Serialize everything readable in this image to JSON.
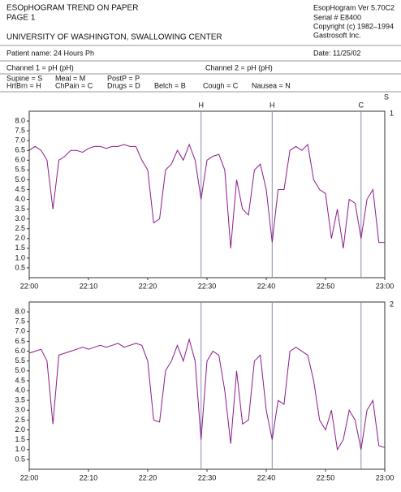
{
  "header": {
    "title": "ESOpHOGRAM TREND ON PAPER",
    "page": "PAGE 1",
    "institution": "UNIVERSITY OF WASHINGTON, SWALLOWING CENTER",
    "version": "EsopHogram Ver 5.70C2",
    "serial": "Serial # E8400",
    "copyright": "Copyright (c) 1982–1994",
    "company": "Gastrosoft Inc."
  },
  "patient": {
    "name": "Patient name: 24 Hours Ph",
    "date": "Date: 11/25/02"
  },
  "channels": [
    "Channel 1 = pH (pH)",
    "Channel 2 = pH (pH)"
  ],
  "legend": [
    "Supine = S",
    "Meal = M",
    "PostP = P",
    "HrtBrn = H",
    "ChPain = C",
    "Drugs = D",
    "Belch = B",
    "Cough = C",
    "Nausea = N"
  ],
  "position_marker": "S",
  "chart_data": [
    {
      "type": "line",
      "label": "1",
      "color": "#8b1a8b",
      "x": [
        "22:00",
        "22:01",
        "22:02",
        "22:03",
        "22:04",
        "22:05",
        "22:06",
        "22:07",
        "22:08",
        "22:09",
        "22:10",
        "22:11",
        "22:12",
        "22:13",
        "22:14",
        "22:15",
        "22:16",
        "22:17",
        "22:18",
        "22:19",
        "22:20",
        "22:21",
        "22:22",
        "22:23",
        "22:24",
        "22:25",
        "22:26",
        "22:27",
        "22:28",
        "22:29",
        "22:30",
        "22:31",
        "22:32",
        "22:33",
        "22:34",
        "22:35",
        "22:36",
        "22:37",
        "22:38",
        "22:39",
        "22:40",
        "22:41",
        "22:42",
        "22:43",
        "22:44",
        "22:45",
        "22:46",
        "22:47",
        "22:48",
        "22:49",
        "22:50",
        "22:51",
        "22:52",
        "22:53",
        "22:54",
        "22:55",
        "22:56",
        "22:57",
        "22:58",
        "22:59",
        "23:00"
      ],
      "values": [
        6.5,
        6.7,
        6.5,
        6.0,
        3.5,
        6.0,
        6.2,
        6.5,
        6.5,
        6.4,
        6.6,
        6.7,
        6.7,
        6.6,
        6.7,
        6.7,
        6.8,
        6.7,
        6.7,
        6.0,
        5.5,
        2.8,
        3.0,
        5.5,
        5.8,
        6.5,
        6.0,
        6.8,
        6.0,
        4.0,
        6.0,
        6.2,
        6.3,
        5.5,
        1.5,
        5.0,
        3.5,
        3.2,
        5.5,
        5.8,
        4.5,
        1.8,
        4.5,
        4.5,
        6.5,
        6.7,
        6.5,
        6.8,
        5.0,
        4.5,
        4.3,
        2.0,
        3.5,
        1.5,
        4.0,
        3.8,
        2.0,
        4.0,
        4.5,
        1.8,
        1.8
      ],
      "xlim": [
        "22:00",
        "23:00"
      ],
      "xticks": [
        "22:00",
        "22:10",
        "22:20",
        "22:30",
        "22:40",
        "22:50",
        "23:00"
      ],
      "ylim": [
        0,
        8.5
      ],
      "yticks": [
        0.5,
        {
          "value": 1,
          "label": "1.0"
        },
        1.5,
        {
          "value": 2,
          "label": "2.0"
        },
        2.5,
        {
          "value": 3,
          "label": "3.0"
        },
        3.5,
        {
          "value": 4,
          "label": "4.0"
        },
        4.5,
        {
          "value": 5,
          "label": "5.0"
        },
        5.5,
        {
          "value": 6,
          "label": "6.0"
        },
        6.5,
        {
          "value": 7,
          "label": "7.0"
        },
        7.5,
        {
          "value": 8,
          "label": "8.0"
        }
      ],
      "events": [
        {
          "label": "H",
          "x": "22:29"
        },
        {
          "label": "H",
          "x": "22:41"
        },
        {
          "label": "C",
          "x": "22:56"
        }
      ]
    },
    {
      "type": "line",
      "label": "2",
      "color": "#8b1a8b",
      "x": [
        "22:00",
        "22:01",
        "22:02",
        "22:03",
        "22:04",
        "22:05",
        "22:06",
        "22:07",
        "22:08",
        "22:09",
        "22:10",
        "22:11",
        "22:12",
        "22:13",
        "22:14",
        "22:15",
        "22:16",
        "22:17",
        "22:18",
        "22:19",
        "22:20",
        "22:21",
        "22:22",
        "22:23",
        "22:24",
        "22:25",
        "22:26",
        "22:27",
        "22:28",
        "22:29",
        "22:30",
        "22:31",
        "22:32",
        "22:33",
        "22:34",
        "22:35",
        "22:36",
        "22:37",
        "22:38",
        "22:39",
        "22:40",
        "22:41",
        "22:42",
        "22:43",
        "22:44",
        "22:45",
        "22:46",
        "22:47",
        "22:48",
        "22:49",
        "22:50",
        "22:51",
        "22:52",
        "22:53",
        "22:54",
        "22:55",
        "22:56",
        "22:57",
        "22:58",
        "22:59",
        "23:00"
      ],
      "values": [
        5.9,
        6.0,
        6.1,
        5.5,
        2.3,
        5.8,
        5.9,
        6.0,
        6.1,
        6.2,
        6.1,
        6.2,
        6.3,
        6.2,
        6.3,
        6.4,
        6.2,
        6.3,
        6.4,
        6.3,
        5.5,
        2.5,
        2.4,
        5.0,
        5.5,
        6.3,
        5.5,
        6.6,
        5.5,
        1.5,
        5.5,
        6.0,
        5.8,
        4.0,
        1.3,
        5.0,
        2.3,
        2.5,
        5.5,
        5.8,
        3.0,
        1.5,
        3.5,
        3.3,
        6.0,
        6.2,
        6.0,
        5.8,
        4.5,
        2.5,
        2.0,
        3.0,
        1.0,
        1.5,
        3.0,
        2.5,
        1.0,
        3.0,
        3.5,
        1.2,
        1.1
      ],
      "xlim": [
        "22:00",
        "23:00"
      ],
      "xticks": [
        "22:00",
        "22:10",
        "22:20",
        "22:30",
        "22:40",
        "22:50",
        "23:00"
      ],
      "ylim": [
        0,
        8.5
      ],
      "yticks": [
        0.5,
        {
          "value": 1,
          "label": "1.0"
        },
        1.5,
        {
          "value": 2,
          "label": "2.0"
        },
        2.5,
        {
          "value": 3,
          "label": "3.0"
        },
        3.5,
        {
          "value": 4,
          "label": "4.0"
        },
        4.5,
        {
          "value": 5,
          "label": "5.0"
        },
        5.5,
        {
          "value": 6,
          "label": "6.0"
        },
        6.5,
        {
          "value": 7,
          "label": "7.0"
        },
        7.5,
        {
          "value": 8,
          "label": "8.0"
        }
      ],
      "events": [
        {
          "x": "22:29"
        },
        {
          "x": "22:41"
        },
        {
          "x": "22:56"
        }
      ]
    }
  ]
}
